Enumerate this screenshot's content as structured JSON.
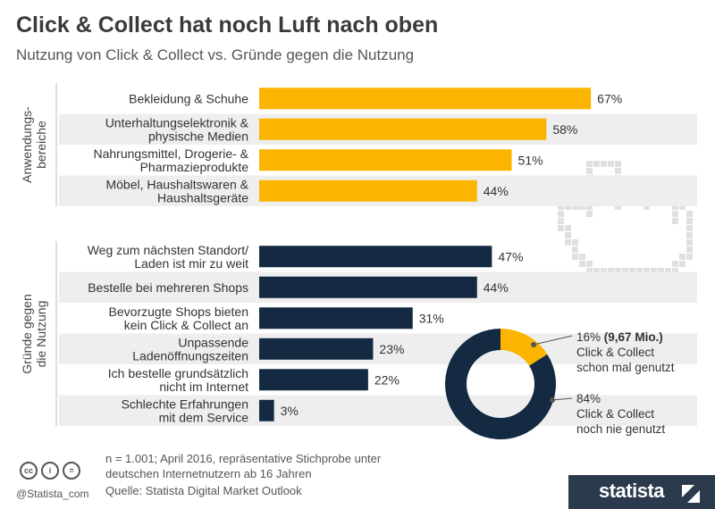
{
  "header": {
    "title": "Click & Collect hat noch Luft nach oben",
    "subtitle": "Nutzung von Click & Collect vs. Gründe gegen die Nutzung"
  },
  "colors": {
    "usage_bar": "#fbb500",
    "reason_bar": "#132a42",
    "row_bg": "#eeeeee"
  },
  "chart_data": [
    {
      "type": "bar",
      "orientation": "horizontal",
      "unit": "%",
      "xlim": [
        0,
        100
      ],
      "groups": [
        {
          "name": "Anwendungs-bereiche",
          "color": "#fbb500",
          "categories": [
            [
              "Bekleidung & Schuhe"
            ],
            [
              "Unterhaltungselektronik &",
              "physische Medien"
            ],
            [
              "Nahrungsmittel, Drogerie- &",
              "Pharmazieprodukte"
            ],
            [
              "Möbel, Haushaltswaren &",
              "Haushaltsgeräte"
            ]
          ],
          "values": [
            67,
            58,
            51,
            44
          ]
        },
        {
          "name": "Gründe gegen die Nutzung",
          "color": "#132a42",
          "categories": [
            [
              "Weg zum nächsten Standort/",
              "Laden ist mir zu weit"
            ],
            [
              "Bestelle bei mehreren Shops"
            ],
            [
              "Bevorzugte Shops bieten",
              "kein Click & Collect an"
            ],
            [
              "Unpassende",
              "Ladenöffnungszeiten"
            ],
            [
              "Ich bestelle grundsätzlich",
              "nicht im Internet"
            ],
            [
              "Schlechte Erfahrungen",
              "mit dem Service"
            ]
          ],
          "values": [
            47,
            44,
            31,
            23,
            22,
            3
          ]
        }
      ]
    },
    {
      "type": "pie",
      "style": "donut",
      "unit": "%",
      "slices": [
        {
          "label": "16%",
          "extra": "(9,67 Mio.)",
          "lines": [
            "Click & Collect",
            "schon mal genutzt"
          ],
          "value": 16,
          "color": "#fbb500"
        },
        {
          "label": "84%",
          "lines": [
            "Click & Collect",
            "noch nie genutzt"
          ],
          "value": 84,
          "color": "#132a42"
        }
      ]
    }
  ],
  "footer": {
    "note": "n = 1.001; April 2016, repräsentative Stichprobe unter deutschen Internetnutzern ab 16 Jahren",
    "source": "Quelle: Statista Digital Market Outlook",
    "handle": "@Statista_com",
    "brand": "statista",
    "cc_icons": [
      "cc-icon",
      "by-icon",
      "nd-icon"
    ]
  }
}
